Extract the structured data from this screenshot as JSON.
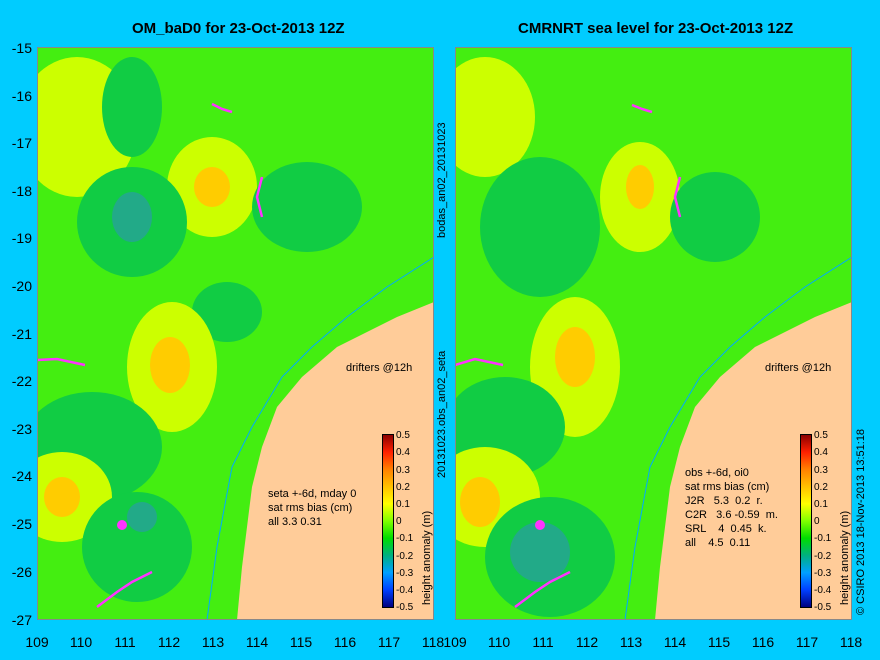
{
  "left_panel": {
    "title": "OM_baD0 for 23-Oct-2013 12Z",
    "side_label": "bodas_an02_20131023",
    "stats_lines": "seta +-6d, mday 0\nsat rms bias (cm)\nall 3.3 0.31",
    "drifters_label": "drifters @12h"
  },
  "right_panel": {
    "title": "CMRNRT sea level  for 23-Oct-2013 12Z",
    "side_label": "20131023.obs_an02_seta",
    "stats_lines": "obs +-6d, oi0\nsat rms bias (cm)\nJ2R   5.3  0.2  r.\nC2R   3.6 -0.59  m.\nSRL    4  0.45  k.\nall    4.5  0.11",
    "drifters_label": "drifters @12h",
    "credit": "© CSIRO 2013   18-Nov-2013 13:51:18"
  },
  "axes": {
    "y_ticks": [
      "-15",
      "-16",
      "-17",
      "-18",
      "-19",
      "-20",
      "-21",
      "-22",
      "-23",
      "-24",
      "-25",
      "-26",
      "-27"
    ],
    "x_ticks": [
      "109",
      "110",
      "111",
      "112",
      "113",
      "114",
      "115",
      "116",
      "117",
      "118"
    ]
  },
  "colorbar": {
    "label": "height anomaly (m)",
    "ticks": [
      "0.5",
      "0.4",
      "0.3",
      "0.2",
      "0.1",
      "0",
      "-0.1",
      "-0.2",
      "-0.3",
      "-0.4",
      "-0.5"
    ],
    "colors": [
      "#8b0000",
      "#ff2000",
      "#ff8000",
      "#ffc000",
      "#ffff00",
      "#80ff00",
      "#00dd00",
      "#00b080",
      "#00a0ff",
      "#0040ff",
      "#000080"
    ]
  },
  "palette": {
    "background": "#00ccff",
    "land": "#ffcc99",
    "base_anomaly": "#44ee11",
    "positive_anomaly": "#ccff00",
    "high_anomaly": "#ffcc00",
    "negative_anomaly": "#11cc44",
    "low_anomaly": "#22aa88",
    "drifter": "#ff33ff"
  }
}
